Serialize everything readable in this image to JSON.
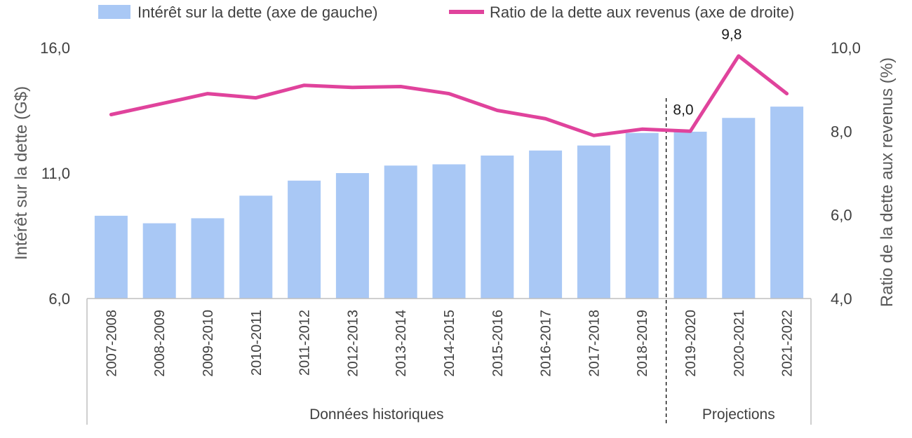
{
  "chart_data": {
    "type": "bar",
    "categories": [
      "2007-2008",
      "2008-2009",
      "2009-2010",
      "2010-2011",
      "2011-2012",
      "2012-2013",
      "2013-2014",
      "2014-2015",
      "2015-2016",
      "2016-2017",
      "2017-2018",
      "2018-2019",
      "2019-2020",
      "2020-2021",
      "2021-2022"
    ],
    "series": [
      {
        "name": "Intérêt sur la dette (axe de gauche)",
        "type": "bar",
        "axis": "left",
        "color": "#a9c8f5",
        "values": [
          9.3,
          9.0,
          9.2,
          10.1,
          10.7,
          11.0,
          11.3,
          11.35,
          11.7,
          11.9,
          12.1,
          12.6,
          12.65,
          13.2,
          13.65
        ]
      },
      {
        "name": "Ratio de la dette aux revenus (axe de droite)",
        "type": "line",
        "axis": "right",
        "color": "#e0439c",
        "values": [
          8.4,
          8.65,
          8.9,
          8.8,
          9.1,
          9.05,
          9.07,
          8.9,
          8.5,
          8.3,
          7.9,
          8.05,
          8.0,
          9.8,
          8.9
        ]
      }
    ],
    "ylabel": "Intérêt sur la dette (G$)",
    "y2label": "Ratio de la dette aux revenus (%)",
    "ylim": [
      6.0,
      16.0
    ],
    "y2lim": [
      4.0,
      10.0
    ],
    "yticks": [
      "6,0",
      "11,0",
      "16,0"
    ],
    "y2ticks": [
      "4,0",
      "6,0",
      "8,0",
      "10,0"
    ],
    "annotations": [
      {
        "category_index": 12,
        "text": "8,0"
      },
      {
        "category_index": 13,
        "text": "9,8"
      }
    ],
    "groups": [
      {
        "label": "Données historiques",
        "start_index": 0,
        "end_index": 11
      },
      {
        "label": "Projections",
        "start_index": 12,
        "end_index": 14
      }
    ],
    "legend_position": "top",
    "grid": false
  }
}
